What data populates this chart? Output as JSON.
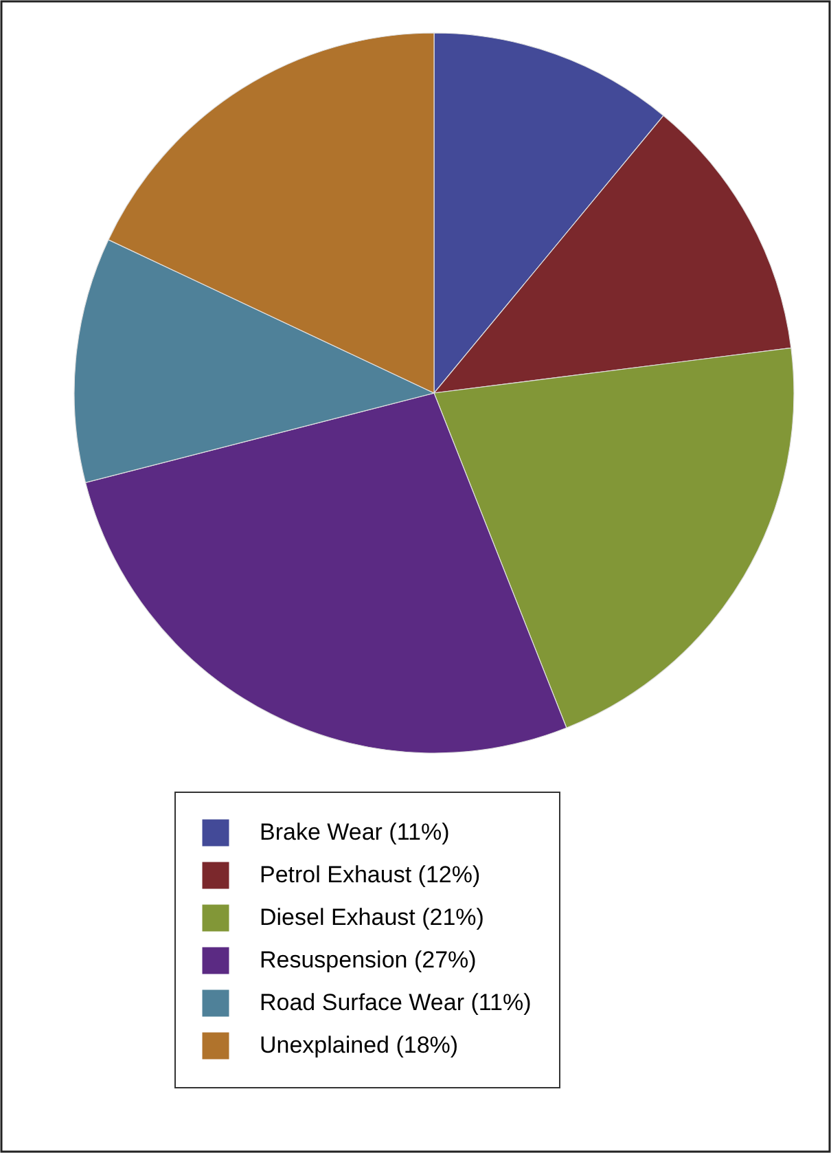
{
  "chart_data": {
    "type": "pie",
    "categories": [
      "Brake Wear (11%)",
      "Petrol Exhaust (12%)",
      "Diesel Exhaust (21%)",
      "Resuspension (27%)",
      "Road Surface Wear (11%)",
      "Unexplained (18%)"
    ],
    "values": [
      11,
      12,
      21,
      27,
      11,
      18
    ],
    "colors": [
      "#434a98",
      "#7b282c",
      "#829737",
      "#5b2a83",
      "#4f8199",
      "#b0732c"
    ],
    "legend": "bottom"
  }
}
